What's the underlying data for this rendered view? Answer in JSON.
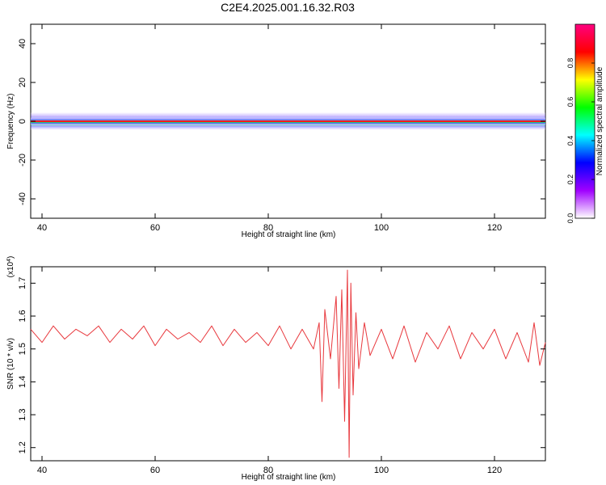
{
  "title": "C2E4.2025.001.16.32.R03",
  "colorbar": {
    "label": "Normalized spectral amplitude",
    "ticks": [
      "0.0",
      "0.2",
      "0.4",
      "0.6",
      "0.8"
    ],
    "stops": [
      "#ffffff",
      "#a000ff",
      "#0000ff",
      "#00ffff",
      "#00ff00",
      "#ffff00",
      "#ff0000",
      "#ff0080"
    ]
  },
  "chart_data": [
    {
      "type": "heatmap",
      "xlabel": "Height of straight line (km)",
      "ylabel": "Frequency (Hz)",
      "xlim": [
        38,
        129
      ],
      "ylim": [
        -50,
        50
      ],
      "xticks": [
        "40",
        "60",
        "80",
        "100",
        "120"
      ],
      "yticks": [
        "40",
        "20",
        "0",
        "-20",
        "-40"
      ],
      "band_center_hz": 0,
      "band_halfwidth_hz": 2
    },
    {
      "type": "line",
      "xlabel": "Height of straight line (km)",
      "ylabel": "SNR (10 * v/v)",
      "y_multiplier": "(x10",
      "y_multiplier_exp": "4",
      "y_multiplier_close": ")",
      "xlim": [
        38,
        129
      ],
      "ylim": [
        1.16,
        1.75
      ],
      "xticks": [
        "40",
        "60",
        "80",
        "100",
        "120"
      ],
      "yticks": [
        "1.2",
        "1.3",
        "1.4",
        "1.5",
        "1.6",
        "1.7"
      ],
      "color": "#e8383d",
      "series": [
        {
          "x": [
            38,
            40,
            42,
            44,
            46,
            48,
            50,
            52,
            54,
            56,
            58,
            60,
            62,
            64,
            66,
            68,
            70,
            72,
            74,
            76,
            78,
            80,
            82,
            84,
            86,
            88,
            89,
            89.5,
            90,
            91,
            92,
            92.5,
            93,
            93.5,
            94,
            94.3,
            94.6,
            95,
            95.5,
            96,
            97,
            98,
            100,
            102,
            104,
            106,
            108,
            110,
            112,
            114,
            116,
            118,
            120,
            122,
            124,
            126,
            127,
            128,
            129
          ],
          "y": [
            1.56,
            1.52,
            1.57,
            1.53,
            1.56,
            1.54,
            1.57,
            1.52,
            1.56,
            1.53,
            1.57,
            1.51,
            1.56,
            1.53,
            1.55,
            1.52,
            1.57,
            1.51,
            1.56,
            1.52,
            1.55,
            1.51,
            1.57,
            1.5,
            1.56,
            1.5,
            1.58,
            1.34,
            1.62,
            1.47,
            1.66,
            1.38,
            1.68,
            1.28,
            1.74,
            1.17,
            1.7,
            1.36,
            1.61,
            1.44,
            1.58,
            1.48,
            1.56,
            1.47,
            1.57,
            1.46,
            1.55,
            1.5,
            1.57,
            1.47,
            1.55,
            1.5,
            1.56,
            1.47,
            1.55,
            1.46,
            1.58,
            1.45,
            1.52
          ]
        }
      ]
    }
  ]
}
